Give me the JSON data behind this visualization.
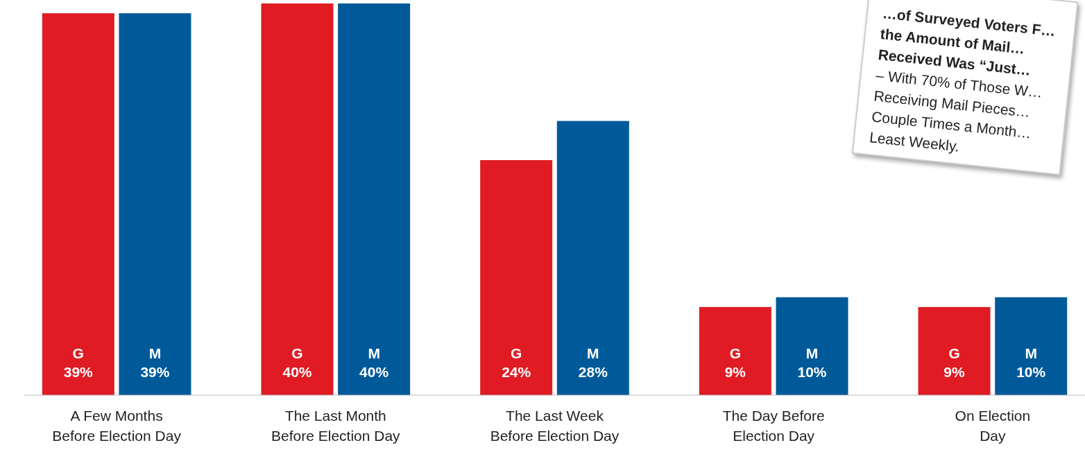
{
  "chart_data": {
    "type": "bar",
    "categories": [
      "A Few Months\nBefore Election Day",
      "The Last Month\nBefore Election Day",
      "The Last Week\nBefore Election Day",
      "The Day Before\nElection Day",
      "On Election\nDay"
    ],
    "series": [
      {
        "name": "G",
        "color": "#e01b23",
        "values": [
          39,
          40,
          24,
          9,
          9
        ],
        "value_labels": [
          "39%",
          "40%",
          "24%",
          "9%",
          "9%"
        ]
      },
      {
        "name": "M",
        "color": "#005a9a",
        "values": [
          39,
          40,
          28,
          10,
          10
        ],
        "value_labels": [
          "39%",
          "40%",
          "28%",
          "10%",
          "10%"
        ]
      }
    ],
    "annotations": [
      "…of Surveyed Voters F…\nthe Amount of Mail…\nReceived Was “Just…\n– With 70% of Those W…\nReceiving Mail Pieces…\nCouple Times a Month…\nLeast Weekly."
    ]
  }
}
